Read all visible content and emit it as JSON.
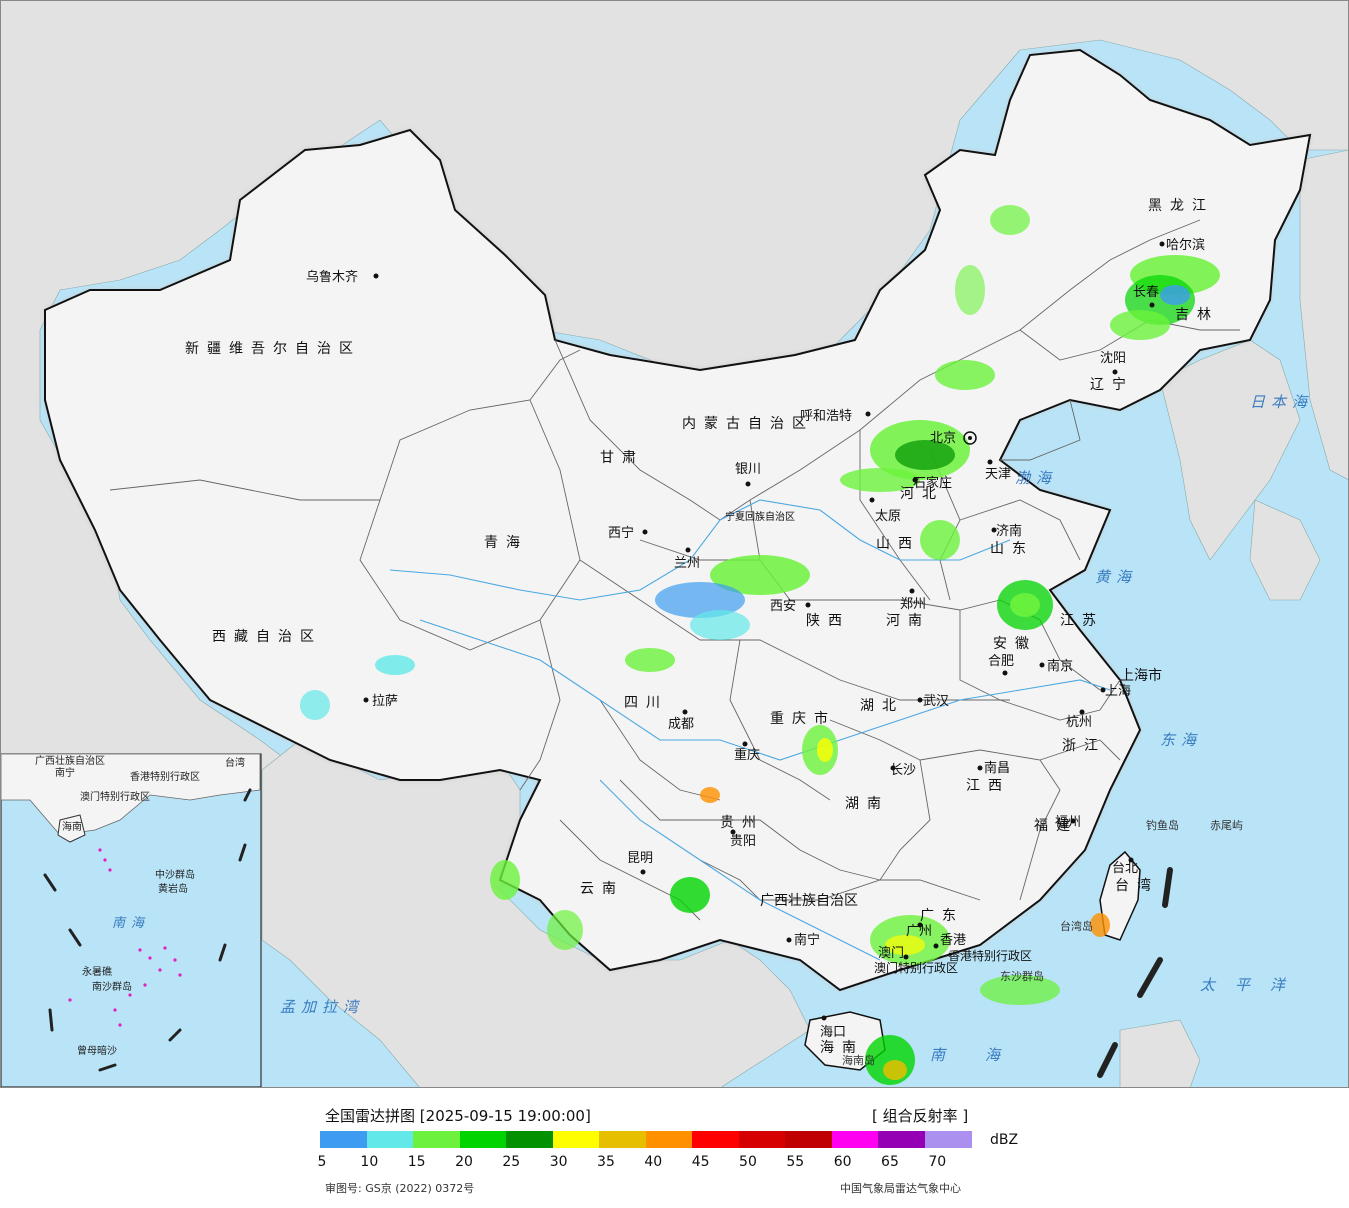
{
  "title": {
    "name": "全国雷达拼图",
    "timestamp": "[2025-09-15 19:00:00]",
    "product": "[ 组合反射率 ]"
  },
  "legend": {
    "unit": "dBZ",
    "ticks": [
      "5",
      "10",
      "15",
      "20",
      "25",
      "30",
      "35",
      "40",
      "45",
      "50",
      "55",
      "60",
      "65",
      "70"
    ],
    "colors": [
      "#3d9cf0",
      "#62e8e8",
      "#6cf23c",
      "#00d400",
      "#019101",
      "#fefe00",
      "#e6c000",
      "#ff9000",
      "#ff0000",
      "#d60000",
      "#c00000",
      "#ff00f0",
      "#9600b4",
      "#ac90f0"
    ]
  },
  "footer": {
    "approval": "审图号: GS京 (2022) 0372号",
    "agency": "中国气象局雷达气象中心"
  },
  "colors": {
    "sea": "#b9e4f7",
    "land": "#f4f4f4",
    "foreign": "#e2e2e2",
    "border": "#111111"
  },
  "map": {
    "provinces": [
      {
        "name": "新疆维吾尔自治区"
      },
      {
        "name": "西藏自治区"
      },
      {
        "name": "青海"
      },
      {
        "name": "甘肃"
      },
      {
        "name": "内蒙古自治区"
      },
      {
        "name": "黑龙江"
      },
      {
        "name": "吉林"
      },
      {
        "name": "辽宁"
      },
      {
        "name": "河北"
      },
      {
        "name": "山西"
      },
      {
        "name": "山东"
      },
      {
        "name": "河南"
      },
      {
        "name": "陕西"
      },
      {
        "name": "四川"
      },
      {
        "name": "重庆市"
      },
      {
        "name": "湖北"
      },
      {
        "name": "安徽"
      },
      {
        "name": "江苏"
      },
      {
        "name": "上海市"
      },
      {
        "name": "浙江"
      },
      {
        "name": "江西"
      },
      {
        "name": "湖南"
      },
      {
        "name": "贵州"
      },
      {
        "name": "云南"
      },
      {
        "name": "广西壮族自治区"
      },
      {
        "name": "广东"
      },
      {
        "name": "福建"
      },
      {
        "name": "台湾"
      },
      {
        "name": "海南"
      },
      {
        "name": "宁夏回族自治区"
      },
      {
        "name": "香港特别行政区"
      },
      {
        "name": "澳门特别行政区"
      }
    ],
    "cities": [
      {
        "name": "乌鲁木齐"
      },
      {
        "name": "拉萨"
      },
      {
        "name": "西宁"
      },
      {
        "name": "兰州"
      },
      {
        "name": "银川"
      },
      {
        "name": "呼和浩特"
      },
      {
        "name": "哈尔滨"
      },
      {
        "name": "长春"
      },
      {
        "name": "沈阳"
      },
      {
        "name": "北京"
      },
      {
        "name": "天津"
      },
      {
        "name": "石家庄"
      },
      {
        "name": "太原"
      },
      {
        "name": "济南"
      },
      {
        "name": "郑州"
      },
      {
        "name": "西安"
      },
      {
        "name": "成都"
      },
      {
        "name": "重庆"
      },
      {
        "name": "武汉"
      },
      {
        "name": "合肥"
      },
      {
        "name": "南京"
      },
      {
        "name": "上海"
      },
      {
        "name": "杭州"
      },
      {
        "name": "南昌"
      },
      {
        "name": "长沙"
      },
      {
        "name": "贵阳"
      },
      {
        "name": "昆明"
      },
      {
        "name": "南宁"
      },
      {
        "name": "广州"
      },
      {
        "name": "福州"
      },
      {
        "name": "台北"
      },
      {
        "name": "海口"
      },
      {
        "name": "香港"
      },
      {
        "name": "澳门"
      }
    ],
    "seas": [
      {
        "name": "渤海"
      },
      {
        "name": "黄海"
      },
      {
        "name": "东海"
      },
      {
        "name": "南海"
      },
      {
        "name": "日本海"
      },
      {
        "name": "太平洋"
      },
      {
        "name": "孟加拉湾"
      }
    ],
    "islands": [
      {
        "name": "钓鱼岛"
      },
      {
        "name": "赤尾屿"
      },
      {
        "name": "台湾岛"
      },
      {
        "name": "东沙群岛"
      },
      {
        "name": "海南岛"
      }
    ],
    "inset": {
      "labels": [
        "南海",
        "中沙群岛",
        "黄岩岛",
        "永暑礁",
        "南沙群岛",
        "曾母暗沙",
        "海南",
        "广西壮族自治区",
        "香港特别行政区",
        "澳门特别行政区",
        "台湾",
        "南宁"
      ]
    }
  }
}
